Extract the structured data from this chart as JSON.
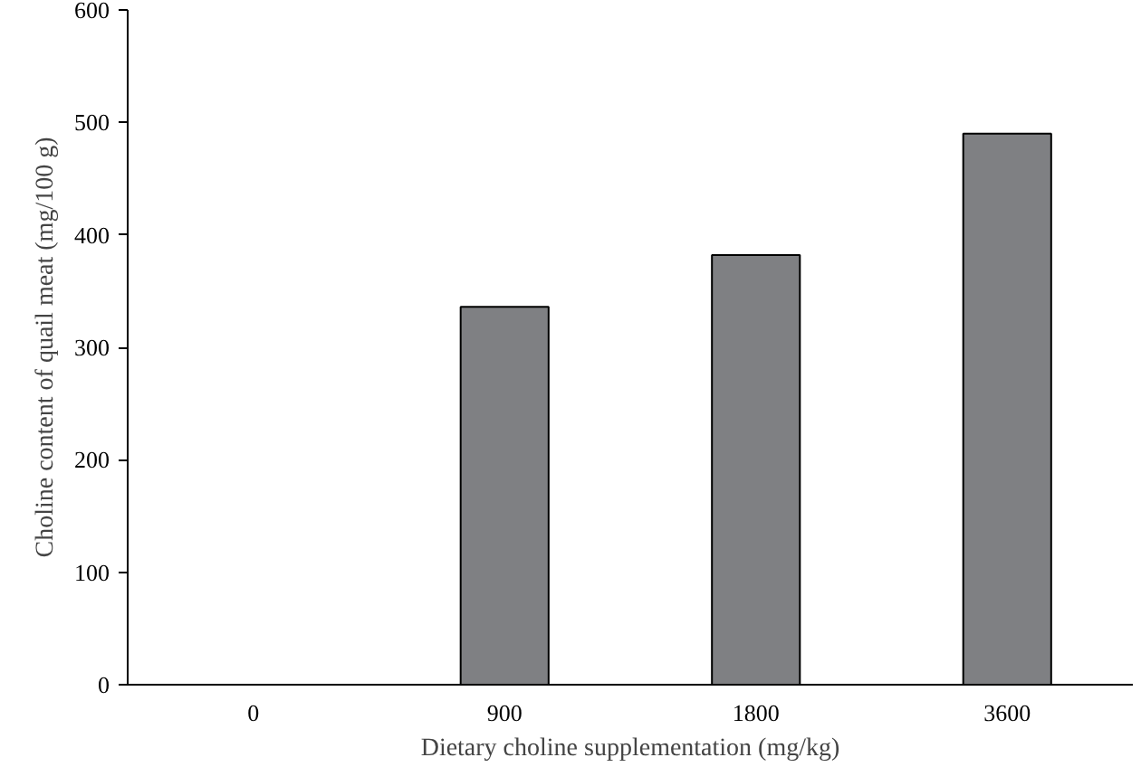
{
  "chart_data": {
    "type": "bar",
    "xlabel": "Dietary choline supplementation (mg/kg)",
    "ylabel": "Choline content of quail meat (mg/100 g)",
    "categories": [
      "0",
      "900",
      "1800",
      "3600"
    ],
    "values": [
      null,
      336,
      382,
      490
    ],
    "color": "#7f8083",
    "ylim": [
      0,
      600
    ],
    "yticks": [
      0,
      100,
      200,
      300,
      400,
      500,
      600
    ],
    "grid": false
  }
}
